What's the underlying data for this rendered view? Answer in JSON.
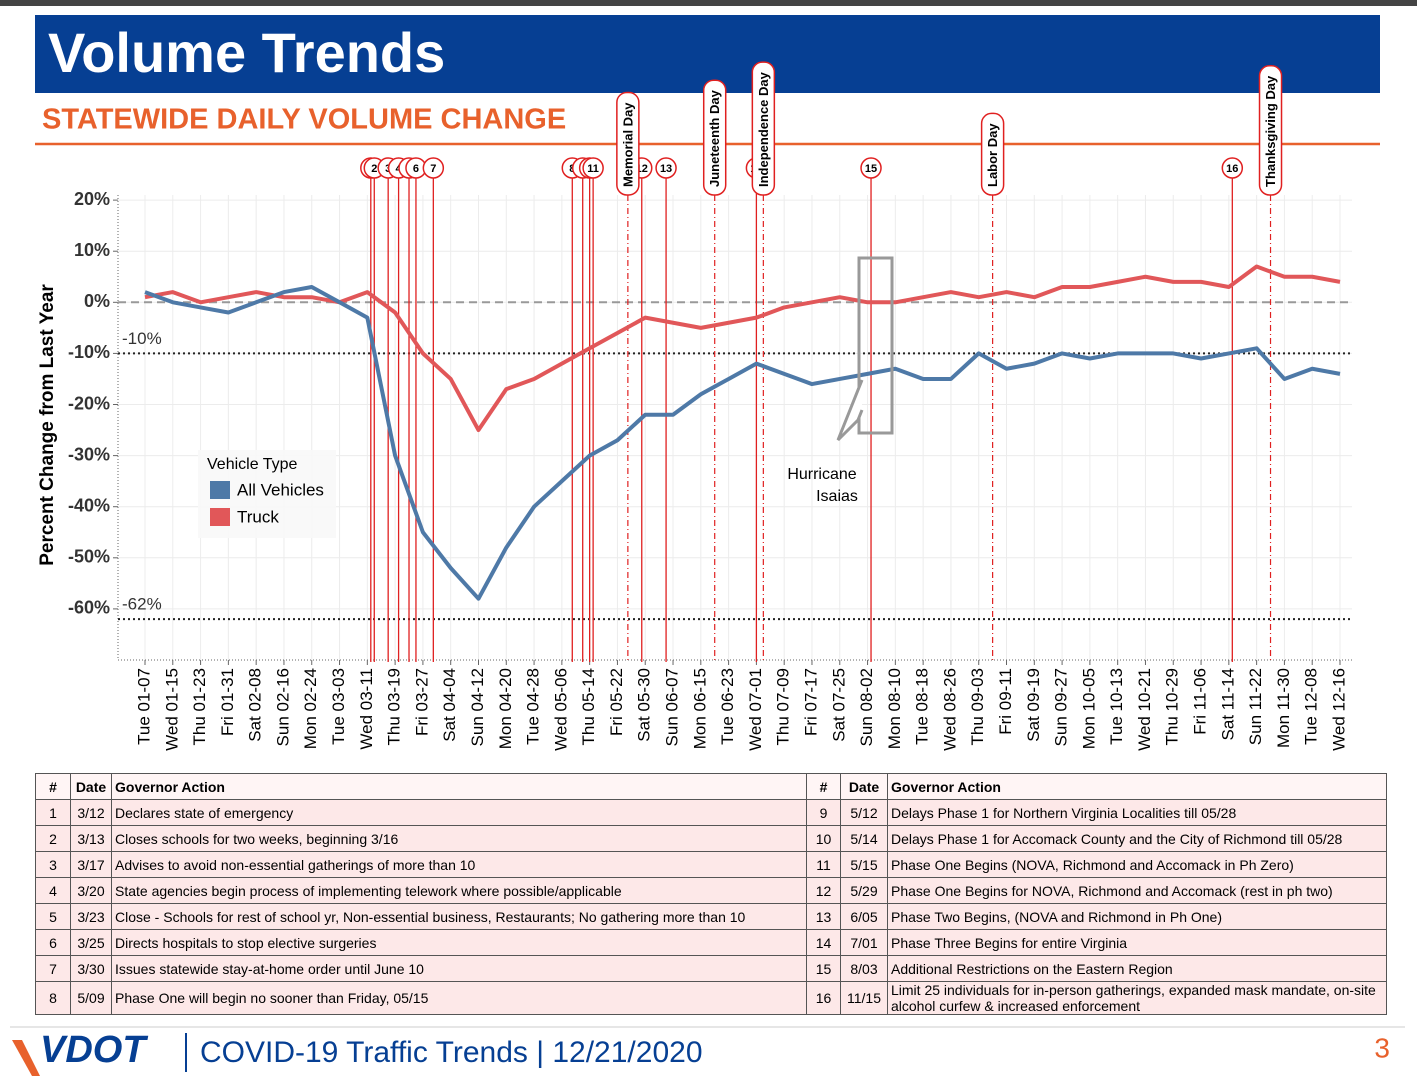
{
  "header": {
    "title": "Volume Trends",
    "subtitle": "STATEWIDE DAILY VOLUME CHANGE"
  },
  "chart_data": {
    "type": "line",
    "y_label": "Percent Change from Last Year",
    "categories": [
      "Tue 01-07",
      "Wed 01-15",
      "Thu 01-23",
      "Fri 01-31",
      "Sat 02-08",
      "Sun 02-16",
      "Mon 02-24",
      "Tue 03-03",
      "Wed 03-11",
      "Thu 03-19",
      "Fri 03-27",
      "Sat 04-04",
      "Sun 04-12",
      "Mon 04-20",
      "Tue 04-28",
      "Wed 05-06",
      "Thu 05-14",
      "Fri 05-22",
      "Sat 05-30",
      "Sun 06-07",
      "Mon 06-15",
      "Tue 06-23",
      "Wed 07-01",
      "Thu 07-09",
      "Fri 07-17",
      "Sat 07-25",
      "Sun 08-02",
      "Mon 08-10",
      "Tue 08-18",
      "Wed 08-26",
      "Thu 09-03",
      "Fri 09-11",
      "Sat 09-19",
      "Sun 09-27",
      "Mon 10-05",
      "Tue 10-13",
      "Wed 10-21",
      "Thu 10-29",
      "Fri 11-06",
      "Sat 11-14",
      "Sun 11-22",
      "Mon 11-30",
      "Tue 12-08",
      "Wed 12-16"
    ],
    "series": [
      {
        "name": "All Vehicles",
        "color": "#4e79a7",
        "values": [
          2,
          0,
          -1,
          -2,
          0,
          2,
          3,
          0,
          -3,
          -30,
          -45,
          -52,
          -58,
          -48,
          -40,
          -35,
          -30,
          -27,
          -22,
          -22,
          -18,
          -15,
          -12,
          -14,
          -16,
          -15,
          -14,
          -13,
          -15,
          -15,
          -10,
          -13,
          -12,
          -10,
          -11,
          -10,
          -10,
          -10,
          -11,
          -10,
          -9,
          -15,
          -13,
          -14
        ]
      },
      {
        "name": "Truck",
        "color": "#e15759",
        "values": [
          1,
          2,
          0,
          1,
          2,
          1,
          1,
          0,
          2,
          -2,
          -10,
          -15,
          -25,
          -17,
          -15,
          -12,
          -9,
          -6,
          -3,
          -4,
          -5,
          -4,
          -3,
          -1,
          0,
          1,
          0,
          0,
          1,
          2,
          1,
          2,
          1,
          3,
          3,
          4,
          5,
          4,
          4,
          3,
          7,
          5,
          5,
          4
        ]
      }
    ],
    "legend_title": "Vehicle Type",
    "ylim": [
      -70,
      21
    ],
    "yticks": [
      {
        "value": 20,
        "label": "20%"
      },
      {
        "value": 10,
        "label": "10%"
      },
      {
        "value": 0,
        "label": "0%"
      },
      {
        "value": -10,
        "label": "-10%"
      },
      {
        "value": -20,
        "label": "-20%"
      },
      {
        "value": -30,
        "label": "-30%"
      },
      {
        "value": -40,
        "label": "-40%"
      },
      {
        "value": -50,
        "label": "-50%"
      },
      {
        "value": -60,
        "label": "-60%"
      }
    ],
    "reference_lines": [
      {
        "value": 0,
        "style": "dashed"
      },
      {
        "value": -10,
        "label": "-10%",
        "style": "dotted"
      },
      {
        "value": -62,
        "label": "-62%",
        "style": "dotted"
      }
    ],
    "holidays": [
      "Memorial Day",
      "Juneteenth Day",
      "Independence Day",
      "Labor Day",
      "Thanksgiving Day"
    ],
    "annotation": "Hurricane Isaias",
    "grid": true
  },
  "table": {
    "columns": [
      "#",
      "Date",
      "Governor Action"
    ],
    "rows": [
      [
        "1",
        "3/12",
        "Declares state of emergency"
      ],
      [
        "2",
        "3/13",
        "Closes schools for two weeks, beginning 3/16"
      ],
      [
        "3",
        "3/17",
        "Advises to avoid non-essential gatherings of more than 10"
      ],
      [
        "4",
        "3/20",
        "State agencies begin process of implementing telework where possible/applicable"
      ],
      [
        "5",
        "3/23",
        "Close - Schools for rest of school yr, Non-essential business, Restaurants; No gathering more than 10"
      ],
      [
        "6",
        "3/25",
        "Directs hospitals to stop elective surgeries"
      ],
      [
        "7",
        "3/30",
        "Issues statewide stay-at-home order until June 10"
      ],
      [
        "8",
        "5/09",
        "Phase One will begin no sooner than Friday, 05/15"
      ],
      [
        "9",
        "5/12",
        "Delays Phase 1 for Northern Virginia Localities till 05/28"
      ],
      [
        "10",
        "5/14",
        "Delays Phase 1 for Accomack County and the City of Richmond till 05/28"
      ],
      [
        "11",
        "5/15",
        "Phase One Begins (NOVA, Richmond and Accomack in Ph Zero)"
      ],
      [
        "12",
        "5/29",
        "Phase One Begins for NOVA, Richmond and Accomack (rest in ph two)"
      ],
      [
        "13",
        "6/05",
        "Phase Two Begins, (NOVA and Richmond in Ph One)"
      ],
      [
        "14",
        "7/01",
        "Phase Three Begins for entire Virginia"
      ],
      [
        "15",
        "8/03",
        "Additional Restrictions on the Eastern Region"
      ],
      [
        "16",
        "11/15",
        "Limit 25 individuals for in-person gatherings, expanded mask mandate, on-site alcohol curfew & increased enforcement"
      ]
    ]
  },
  "footer": {
    "logo": "VDOT",
    "text": "COVID-19 Traffic Trends | 12/21/2020",
    "page": "3"
  }
}
